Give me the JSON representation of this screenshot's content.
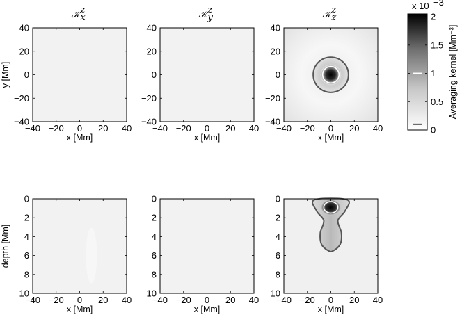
{
  "chart_data": [
    {
      "type": "heatmap",
      "panel": "top-left",
      "title": "𝒦",
      "title_sub": "x",
      "title_sup": "z",
      "xlabel": "x [Mm]",
      "ylabel": "y [Mm]",
      "xlim": [
        -40,
        40
      ],
      "ylim": [
        -40,
        40
      ],
      "xticks": [
        "-40",
        "-20",
        "0",
        "20",
        "40"
      ],
      "yticks": [
        "40",
        "20",
        "0",
        "-20",
        "-40"
      ],
      "field": "near-zero uniform",
      "peak": 0
    },
    {
      "type": "heatmap",
      "panel": "top-middle",
      "title": "𝒦",
      "title_sub": "y",
      "title_sup": "z",
      "xlabel": "x [Mm]",
      "ylabel": "",
      "xlim": [
        -40,
        40
      ],
      "ylim": [
        -40,
        40
      ],
      "xticks": [
        "-40",
        "-20",
        "0",
        "20",
        "40"
      ],
      "yticks": [
        "40",
        "20",
        "0",
        "-20",
        "-40"
      ],
      "field": "near-zero uniform",
      "peak": 0
    },
    {
      "type": "heatmap",
      "panel": "top-right",
      "title": "𝒦",
      "title_sub": "z",
      "title_sup": "z",
      "xlabel": "x [Mm]",
      "ylabel": "",
      "xlim": [
        -40,
        40
      ],
      "ylim": [
        -40,
        40
      ],
      "xticks": [
        "-40",
        "-20",
        "0",
        "20",
        "40"
      ],
      "yticks": [
        "40",
        "20",
        "0",
        "-20",
        "-40"
      ],
      "peak": 0.00205,
      "peak_location": [
        0,
        0
      ],
      "contours": [
        {
          "level": 0.001,
          "shape": "circle",
          "center": [
            0,
            0
          ],
          "radius": 7
        },
        {
          "level": 0.0001,
          "shape": "circle",
          "center": [
            0,
            0
          ],
          "radius": 15
        }
      ]
    },
    {
      "type": "heatmap",
      "panel": "bottom-left",
      "title": "",
      "xlabel": "x [Mm]",
      "ylabel": "depth [Mm]",
      "xlim": [
        -40,
        40
      ],
      "ylim": [
        10,
        0
      ],
      "xticks": [
        "-40",
        "-20",
        "0",
        "20",
        "40"
      ],
      "yticks": [
        "0",
        "2",
        "4",
        "6",
        "8",
        "10"
      ],
      "field": "near-zero uniform",
      "peak": 0
    },
    {
      "type": "heatmap",
      "panel": "bottom-middle",
      "title": "",
      "xlabel": "x [Mm]",
      "ylabel": "",
      "xlim": [
        -40,
        40
      ],
      "ylim": [
        10,
        0
      ],
      "xticks": [
        "-40",
        "-20",
        "0",
        "20",
        "40"
      ],
      "yticks": [
        "0",
        "2",
        "4",
        "6",
        "8",
        "10"
      ],
      "field": "near-zero uniform",
      "peak": 0
    },
    {
      "type": "heatmap",
      "panel": "bottom-right",
      "title": "",
      "xlabel": "x [Mm]",
      "ylabel": "",
      "xlim": [
        -40,
        40
      ],
      "ylim": [
        10,
        0
      ],
      "xticks": [
        "-40",
        "-20",
        "0",
        "20",
        "40"
      ],
      "yticks": [
        "0",
        "2",
        "4",
        "6",
        "8",
        "10"
      ],
      "peak": 0.00205,
      "peak_location": [
        0,
        0.9
      ],
      "contours": [
        {
          "level": 0.001,
          "shape": "ellipse",
          "center": [
            0,
            0.9
          ],
          "rx": 6,
          "ry": 0.6
        },
        {
          "level": 0.0001,
          "shape": "outline",
          "points": [
            [
              -14,
              0.1
            ],
            [
              14,
              0.1
            ],
            [
              12,
              1.3
            ],
            [
              6,
              2.3
            ],
            [
              9,
              3.6
            ],
            [
              8,
              4.8
            ],
            [
              2,
              5.5
            ],
            [
              -2,
              5.5
            ],
            [
              -8,
              4.8
            ],
            [
              -9,
              3.6
            ],
            [
              -6,
              2.3
            ],
            [
              -12,
              1.3
            ]
          ]
        }
      ]
    }
  ],
  "colorbar": {
    "label": "Averaging kernel [Mm⁻³]",
    "exponent_label": "x 10",
    "exponent": "−3",
    "range": [
      0,
      2.05
    ],
    "ticks": [
      "0",
      "0.5",
      "1",
      "1.5",
      "2"
    ],
    "markers": [
      {
        "value": 1,
        "color": "#ffffff"
      },
      {
        "value": 0.1,
        "color": "#555555"
      }
    ],
    "colormap": "white-to-black"
  }
}
